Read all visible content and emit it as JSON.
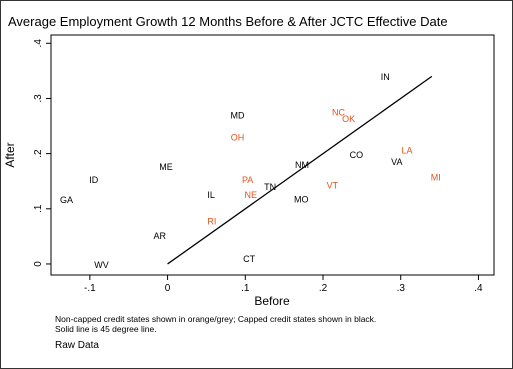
{
  "chart_data": {
    "type": "scatter",
    "title": "Average Employment Growth 12 Months Before & After JCTC Effective Date",
    "xlabel": "Before",
    "ylabel": "After",
    "xlim": [
      -0.15,
      0.42
    ],
    "ylim": [
      -0.02,
      0.415
    ],
    "x_ticks": [
      -0.1,
      0,
      0.1,
      0.2,
      0.3,
      0.4
    ],
    "x_tick_labels": [
      "-.1",
      "0",
      ".1",
      ".2",
      ".3",
      ".4"
    ],
    "y_ticks": [
      0,
      0.1,
      0.2,
      0.3,
      0.4
    ],
    "y_tick_labels": [
      "0",
      ".1",
      ".2",
      ".3",
      ".4"
    ],
    "grid": false,
    "legend": "none",
    "colors": {
      "capped": "#000000",
      "non_capped": "#e8521b"
    },
    "reference_line": {
      "label": "45 degree line",
      "x": [
        0,
        0.34
      ],
      "y": [
        0,
        0.34
      ]
    },
    "points": [
      {
        "label": "IN",
        "x": 0.28,
        "y": 0.34,
        "group": "capped"
      },
      {
        "label": "MD",
        "x": 0.09,
        "y": 0.27,
        "group": "capped"
      },
      {
        "label": "NC",
        "x": 0.22,
        "y": 0.275,
        "group": "non_capped"
      },
      {
        "label": "OK",
        "x": 0.233,
        "y": 0.264,
        "group": "non_capped"
      },
      {
        "label": "OH",
        "x": 0.09,
        "y": 0.23,
        "group": "non_capped"
      },
      {
        "label": "LA",
        "x": 0.308,
        "y": 0.207,
        "group": "non_capped"
      },
      {
        "label": "CO",
        "x": 0.243,
        "y": 0.198,
        "group": "capped"
      },
      {
        "label": "VA",
        "x": 0.295,
        "y": 0.186,
        "group": "capped"
      },
      {
        "label": "NM",
        "x": 0.173,
        "y": 0.18,
        "group": "capped"
      },
      {
        "label": "ME",
        "x": -0.002,
        "y": 0.177,
        "group": "capped"
      },
      {
        "label": "MI",
        "x": 0.345,
        "y": 0.158,
        "group": "non_capped"
      },
      {
        "label": "ID",
        "x": -0.095,
        "y": 0.153,
        "group": "capped"
      },
      {
        "label": "PA",
        "x": 0.103,
        "y": 0.153,
        "group": "non_capped"
      },
      {
        "label": "VT",
        "x": 0.212,
        "y": 0.143,
        "group": "non_capped"
      },
      {
        "label": "TN",
        "x": 0.132,
        "y": 0.14,
        "group": "capped"
      },
      {
        "label": "IL",
        "x": 0.056,
        "y": 0.126,
        "group": "capped"
      },
      {
        "label": "NE",
        "x": 0.107,
        "y": 0.126,
        "group": "non_capped"
      },
      {
        "label": "MO",
        "x": 0.172,
        "y": 0.118,
        "group": "capped"
      },
      {
        "label": "GA",
        "x": -0.13,
        "y": 0.117,
        "group": "capped"
      },
      {
        "label": "RI",
        "x": 0.057,
        "y": 0.078,
        "group": "non_capped"
      },
      {
        "label": "AR",
        "x": -0.01,
        "y": 0.052,
        "group": "capped"
      },
      {
        "label": "CT",
        "x": 0.105,
        "y": 0.01,
        "group": "capped"
      },
      {
        "label": "WV",
        "x": -0.085,
        "y": -0.001,
        "group": "capped"
      }
    ]
  },
  "notes": {
    "line1": "Non-capped credit states shown in orange/grey; Capped credit states shown in black.",
    "line2": "Solid line is 45 degree line.",
    "raw_data": "Raw Data"
  }
}
